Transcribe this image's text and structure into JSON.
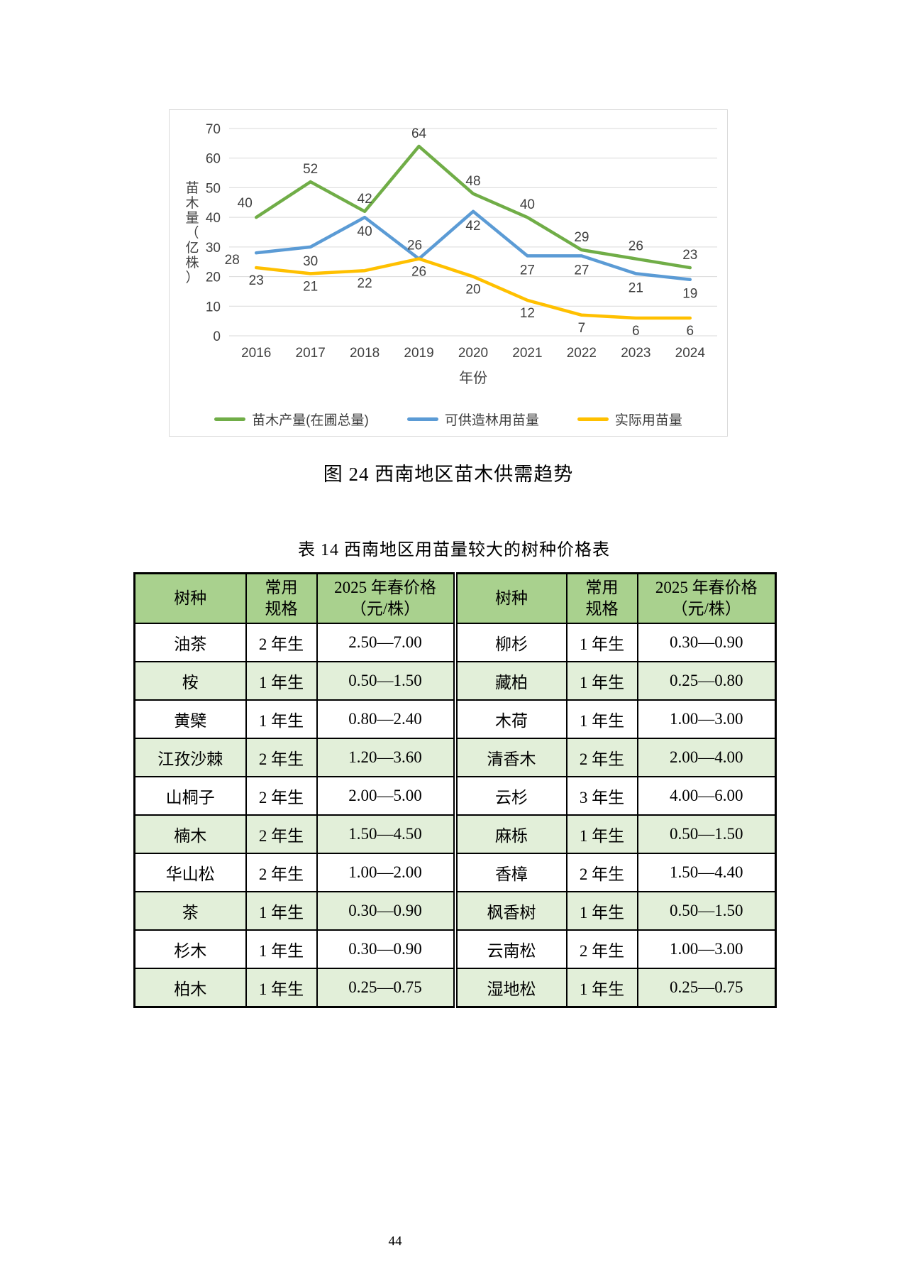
{
  "page": {
    "number": "44"
  },
  "figure": {
    "caption": "图 24 西南地区苗木供需趋势"
  },
  "chart_data": {
    "type": "line",
    "categories": [
      "2016",
      "2017",
      "2018",
      "2019",
      "2020",
      "2021",
      "2022",
      "2023",
      "2024"
    ],
    "xlabel": "年份",
    "ylabel": "苗木量（亿株）",
    "ylim": [
      0,
      70
    ],
    "ytick_step": 10,
    "grid": true,
    "legend_position": "bottom",
    "series": [
      {
        "name": "苗木产量(在圃总量)",
        "color": "#70ad47",
        "values": [
          40,
          52,
          42,
          64,
          48,
          40,
          29,
          26,
          23
        ]
      },
      {
        "name": "可供造林用苗量",
        "color": "#5b9bd5",
        "values": [
          28,
          30,
          40,
          26,
          42,
          27,
          27,
          21,
          19
        ]
      },
      {
        "name": "实际用苗量",
        "color": "#ffc000",
        "values": [
          23,
          21,
          22,
          26,
          20,
          12,
          7,
          6,
          6
        ]
      }
    ]
  },
  "table": {
    "title": "表 14 西南地区用苗量较大的树种价格表",
    "headers": [
      "树种",
      "常用\n规格",
      "2025 年春价格\n（元/株）",
      "树种",
      "常用\n规格",
      "2025 年春价格\n（元/株）"
    ],
    "rows": [
      {
        "cells": [
          "油茶",
          "2 年生",
          "2.50—7.00",
          "柳杉",
          "1 年生",
          "0.30—0.90"
        ]
      },
      {
        "cells": [
          "桉",
          "1 年生",
          "0.50—1.50",
          "藏柏",
          "1 年生",
          "0.25—0.80"
        ]
      },
      {
        "cells": [
          "黄檗",
          "1 年生",
          "0.80—2.40",
          "木荷",
          "1 年生",
          "1.00—3.00"
        ]
      },
      {
        "cells": [
          "江孜沙棘",
          "2 年生",
          "1.20—3.60",
          "清香木",
          "2 年生",
          "2.00—4.00"
        ]
      },
      {
        "cells": [
          "山桐子",
          "2 年生",
          "2.00—5.00",
          "云杉",
          "3 年生",
          "4.00—6.00"
        ]
      },
      {
        "cells": [
          "楠木",
          "2 年生",
          "1.50—4.50",
          "麻栎",
          "1 年生",
          "0.50—1.50"
        ]
      },
      {
        "cells": [
          "华山松",
          "2 年生",
          "1.00—2.00",
          "香樟",
          "2 年生",
          "1.50—4.40"
        ]
      },
      {
        "cells": [
          "茶",
          "1 年生",
          "0.30—0.90",
          "枫香树",
          "1 年生",
          "0.50—1.50"
        ]
      },
      {
        "cells": [
          "杉木",
          "1 年生",
          "0.30—0.90",
          "云南松",
          "2 年生",
          "1.00—3.00"
        ]
      },
      {
        "cells": [
          "柏木",
          "1 年生",
          "0.25—0.75",
          "湿地松",
          "1 年生",
          "0.25—0.75"
        ]
      }
    ]
  }
}
